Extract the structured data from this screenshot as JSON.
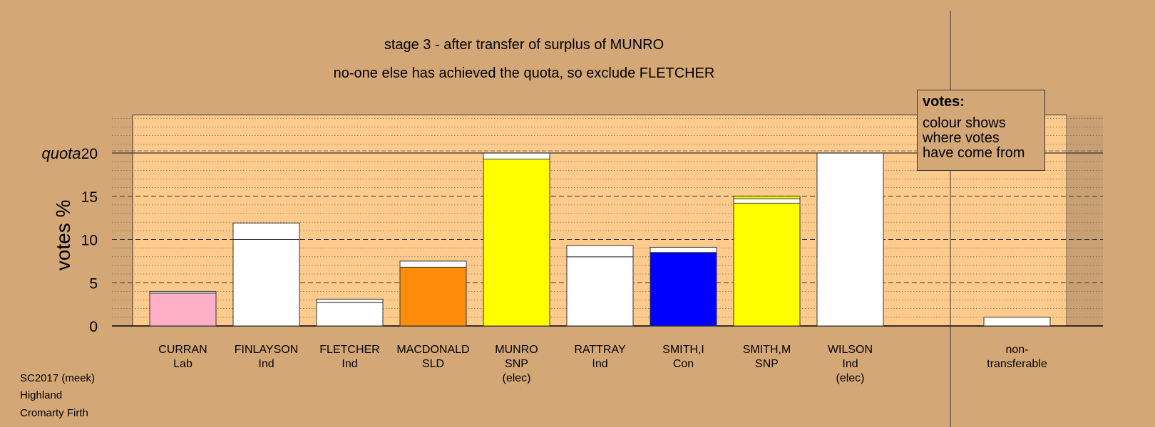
{
  "title_line1": "stage 3 - after transfer of surplus of MUNRO",
  "title_line2": "no-one else has achieved the quota, so exclude FLETCHER",
  "footer": [
    "SC2017 (meek)",
    "Highland",
    "Cromarty Firth"
  ],
  "legend": {
    "title": "votes:",
    "lines": [
      "colour shows",
      "where votes",
      "have come from"
    ]
  },
  "colors": {
    "background": "#d4a876",
    "plot_background": "#fecb8c",
    "Lab": "#ffafc8",
    "Ind": "#ffffff",
    "SLD": "#ff8c0a",
    "SNP": "#ffff00",
    "Con": "#0000ff"
  },
  "chart_data": {
    "type": "bar",
    "stacked": true,
    "ylabel": "votes %",
    "quota_label": "quota",
    "quota": 20,
    "ylim": [
      0,
      25
    ],
    "yticks": [
      0,
      5,
      10,
      15,
      20
    ],
    "grid": true,
    "legend_placement": "top-right",
    "candidates": [
      {
        "name": "CURRAN",
        "party": "Lab",
        "note": "",
        "segments": [
          {
            "color": "#ffafc8",
            "value": 3.8
          },
          {
            "color": "#ffffff",
            "value": 0.2
          }
        ]
      },
      {
        "name": "FINLAYSON",
        "party": "Ind",
        "note": "",
        "segments": [
          {
            "color": "#ffffff",
            "value": 10.0
          },
          {
            "color": "#ffffff",
            "value": 1.9
          }
        ]
      },
      {
        "name": "FLETCHER",
        "party": "Ind",
        "note": "",
        "segments": [
          {
            "color": "#ffffff",
            "value": 2.7
          },
          {
            "color": "#ffffff",
            "value": 0.4
          }
        ]
      },
      {
        "name": "MACDONALD",
        "party": "SLD",
        "note": "",
        "segments": [
          {
            "color": "#ff8c0a",
            "value": 6.8
          },
          {
            "color": "#ffffff",
            "value": 0.7
          }
        ]
      },
      {
        "name": "MUNRO",
        "party": "SNP",
        "note": "(elec)",
        "segments": [
          {
            "color": "#ffff00",
            "value": 19.3
          },
          {
            "color": "#ffffff",
            "value": 0.7
          }
        ]
      },
      {
        "name": "RATTRAY",
        "party": "Ind",
        "note": "",
        "segments": [
          {
            "color": "#ffffff",
            "value": 8.0
          },
          {
            "color": "#ffffff",
            "value": 1.3
          }
        ]
      },
      {
        "name": "SMITH,I",
        "party": "Con",
        "note": "",
        "segments": [
          {
            "color": "#0000ff",
            "value": 8.5
          },
          {
            "color": "#ffffff",
            "value": 0.6
          }
        ]
      },
      {
        "name": "SMITH,M",
        "party": "SNP",
        "note": "",
        "segments": [
          {
            "color": "#ffff00",
            "value": 14.2
          },
          {
            "color": "#ffffff",
            "value": 0.5
          },
          {
            "color": "#ffff00",
            "value": 0.3
          }
        ]
      },
      {
        "name": "WILSON",
        "party": "Ind",
        "note": "(elec)",
        "segments": [
          {
            "color": "#ffffff",
            "value": 20.0
          }
        ]
      }
    ],
    "nontransferable": {
      "label_line1": "non-",
      "label_line2": "transferable",
      "value": 1.0
    }
  }
}
